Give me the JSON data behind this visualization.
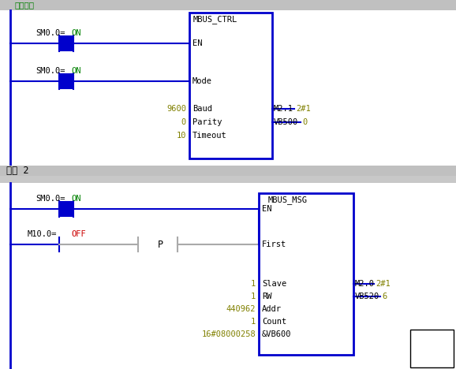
{
  "bg_color": "#f0f0f0",
  "white_bg": "#ffffff",
  "blue": "#0000cc",
  "green": "#008000",
  "olive": "#808000",
  "red": "#cc0000",
  "black": "#000000",
  "gray": "#aaaaaa",
  "light_gray": "#c8c8c8",
  "header_gray": "#c0c0c0",
  "network1_label": "网络注释",
  "network2_label": "网络 2",
  "block1_title": "MBUS_CTRL",
  "block2_title": "MBUS_MSG"
}
